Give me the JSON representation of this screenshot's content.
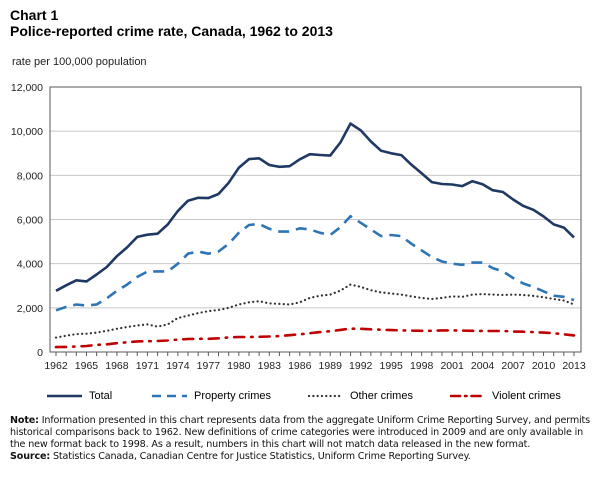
{
  "header": {
    "chart_label": "Chart 1",
    "title": "Police-reported crime rate, Canada, 1962 to 2013",
    "y_unit": "rate per 100,000 population"
  },
  "notes": {
    "note_label": "Note:",
    "note_text": "Information presented in this chart represents data from the aggregate Uniform Crime Reporting Survey, and permits historical comparisons back to 1962. New definitions of crime categories were introduced in 2009 and are only available in the new format back to 1998. As a result, numbers in this chart will not match data released in the new format.",
    "source_label": "Source:",
    "source_text": "Statistics Canada, Canadian Centre for Justice Statistics, Uniform Crime Reporting Survey."
  },
  "chart_data": {
    "type": "line",
    "title": "Police-reported crime rate, Canada, 1962 to 2013",
    "xlabel": "",
    "ylabel": "rate per 100,000 population",
    "ylim": [
      0,
      12000
    ],
    "yticks": [
      0,
      2000,
      4000,
      6000,
      8000,
      10000,
      12000
    ],
    "ytick_labels": [
      "0",
      "2,000",
      "4,000",
      "6,000",
      "8,000",
      "10,000",
      "12,000"
    ],
    "xlim": [
      1962,
      2013
    ],
    "xtick_labels": [
      "1962",
      "1965",
      "1968",
      "1971",
      "1974",
      "1977",
      "1980",
      "1983",
      "1986",
      "1989",
      "1992",
      "1995",
      "1998",
      "2001",
      "2004",
      "2007",
      "2010",
      "2013"
    ],
    "grid": true,
    "legend_position": "bottom",
    "x": [
      1962,
      1963,
      1964,
      1965,
      1966,
      1967,
      1968,
      1969,
      1970,
      1971,
      1972,
      1973,
      1974,
      1975,
      1976,
      1977,
      1978,
      1979,
      1980,
      1981,
      1982,
      1983,
      1984,
      1985,
      1986,
      1987,
      1988,
      1989,
      1990,
      1991,
      1992,
      1993,
      1994,
      1995,
      1996,
      1997,
      1998,
      1999,
      2000,
      2001,
      2002,
      2003,
      2004,
      2005,
      2006,
      2007,
      2008,
      2009,
      2010,
      2011,
      2012,
      2013
    ],
    "series": [
      {
        "name": "Total",
        "color": "#1f3864",
        "style": "solid",
        "values": [
          2771,
          3022,
          3245,
          3199,
          3511,
          3850,
          4336,
          4737,
          5212,
          5311,
          5355,
          5773,
          6388,
          6852,
          6984,
          6971,
          7154,
          7666,
          8343,
          8736,
          8773,
          8470,
          8387,
          8413,
          8727,
          8957,
          8919,
          8892,
          9485,
          10342,
          10040,
          9531,
          9114,
          8996,
          8914,
          8475,
          8093,
          7695,
          7607,
          7587,
          7514,
          7735,
          7600,
          7325,
          7245,
          6907,
          6617,
          6441,
          6139,
          5779,
          5632,
          5190
        ]
      },
      {
        "name": "Property crimes",
        "color": "#2e75b6",
        "style": "dashed",
        "values": [
          1890,
          2040,
          2150,
          2100,
          2150,
          2430,
          2770,
          3050,
          3400,
          3640,
          3650,
          3650,
          4000,
          4450,
          4550,
          4450,
          4550,
          4900,
          5400,
          5750,
          5800,
          5580,
          5450,
          5450,
          5600,
          5550,
          5400,
          5300,
          5650,
          6150,
          5850,
          5550,
          5250,
          5300,
          5250,
          4900,
          4600,
          4300,
          4100,
          4000,
          3950,
          4050,
          4050,
          3800,
          3650,
          3350,
          3100,
          2950,
          2750,
          2550,
          2500,
          2350
        ]
      },
      {
        "name": "Other crimes",
        "color": "#333333",
        "style": "dotted",
        "values": [
          650,
          740,
          810,
          830,
          880,
          960,
          1050,
          1130,
          1200,
          1250,
          1150,
          1250,
          1540,
          1650,
          1760,
          1850,
          1900,
          2000,
          2150,
          2250,
          2300,
          2200,
          2180,
          2150,
          2250,
          2450,
          2550,
          2600,
          2780,
          3050,
          2950,
          2800,
          2700,
          2650,
          2600,
          2520,
          2450,
          2400,
          2450,
          2520,
          2500,
          2600,
          2620,
          2600,
          2580,
          2600,
          2580,
          2540,
          2480,
          2400,
          2330,
          2150
        ]
      },
      {
        "name": "Violent crimes",
        "color": "#c00000",
        "style": "dash-dot",
        "values": [
          221,
          230,
          250,
          270,
          320,
          350,
          400,
          440,
          480,
          490,
          500,
          520,
          560,
          590,
          600,
          600,
          620,
          660,
          680,
          680,
          690,
          700,
          720,
          760,
          800,
          850,
          900,
          940,
          1000,
          1060,
          1050,
          1030,
          1010,
          990,
          980,
          970,
          960,
          960,
          980,
          980,
          970,
          960,
          950,
          950,
          950,
          930,
          920,
          900,
          880,
          850,
          800,
          750
        ]
      }
    ]
  }
}
